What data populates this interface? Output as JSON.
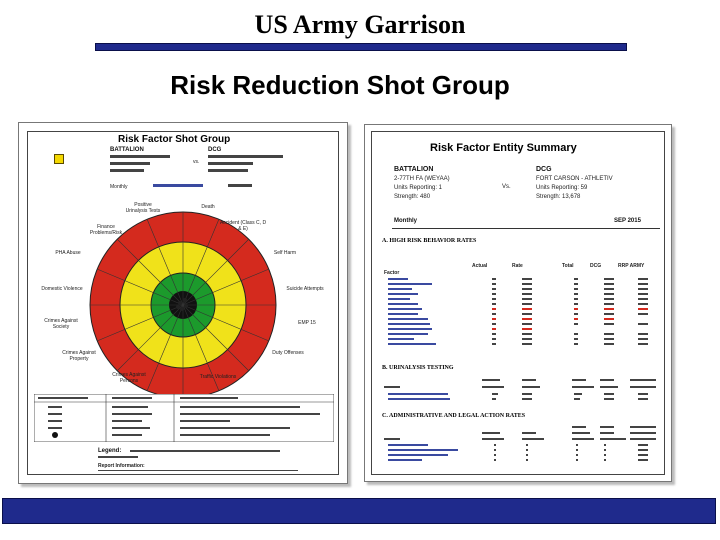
{
  "slide": {
    "title": "US Army Garrison",
    "subtitle": "Risk Reduction Shot Group"
  },
  "left_doc": {
    "title": "Risk Factor Shot Group",
    "battalion_label": "BATTALION",
    "dcg_label": "DCG",
    "vs": "vs.",
    "monthly": "Monthly",
    "legend_label": "Legend:",
    "report_info": "Report Information:",
    "target_labels": [
      "Positive Urinalysis Tests",
      "Death",
      "Accident (Class C, D & E)",
      "Finance Problems/Risk",
      "PHA Abuse",
      "Self Harm",
      "Domestic Violence",
      "Suicide Attempts",
      "Crimes Against Society",
      "EMP 15",
      "Crimes Against Property",
      "Duty Offenses",
      "Crimes Against Persons",
      "Traffic Violations"
    ],
    "colors": {
      "red": "#d42a1e",
      "yellow": "#f0e21a",
      "green": "#1c9a2c",
      "center": "#111111"
    }
  },
  "right_doc": {
    "title": "Risk Factor Entity Summary",
    "battalion_label": "BATTALION",
    "battalion_value": "2-77TH FA (WEYAA)",
    "dcg_label": "DCG",
    "dcg_value": "FORT CARSON - ATHLETIV",
    "vs": "Vs.",
    "units_reporting_left": "Units Reporting: 1",
    "units_reporting_right": "Units Reporting: 59",
    "strength_left": "Strength: 480",
    "strength_right": "Strength: 13,678",
    "monthly": "Monthly",
    "period": "SEP 2015",
    "section_a": "A. HIGH RISK BEHAVIOR RATES",
    "section_b": "B. URINALYSIS TESTING",
    "section_c": "C. ADMINISTRATIVE AND LEGAL ACTION RATES",
    "col_factor": "Factor",
    "col_actual": "Actual",
    "col_rate": "Rate",
    "col_total": "Total",
    "col_dcg": "DCG",
    "col_rrp": "RRP ARMY"
  }
}
